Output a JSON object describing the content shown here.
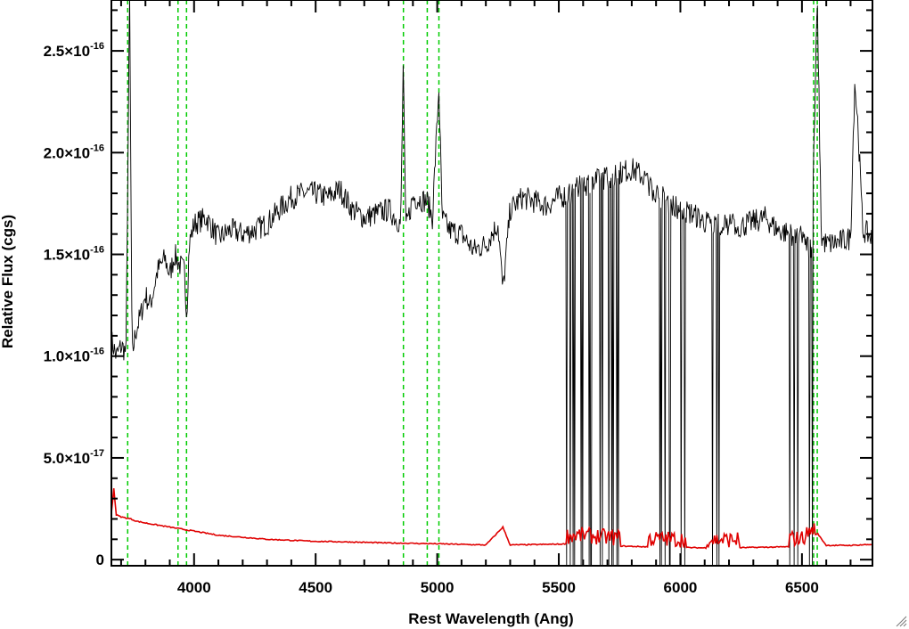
{
  "chart_data": {
    "type": "line",
    "title": "",
    "xlabel": "Rest Wavelength (Ang)",
    "ylabel": "Relative Flux (cgs)",
    "xlim": [
      3660,
      6790
    ],
    "ylim": [
      -3e-18,
      2.75e-16
    ],
    "x_ticks": [
      {
        "value": 4000,
        "label": "4000"
      },
      {
        "value": 4500,
        "label": "4500"
      },
      {
        "value": 5000,
        "label": "5000"
      },
      {
        "value": 5500,
        "label": "5500"
      },
      {
        "value": 6000,
        "label": "6000"
      },
      {
        "value": 6500,
        "label": "6500"
      }
    ],
    "x_minor_step": 100,
    "y_ticks": [
      {
        "value": 0,
        "mantissa": "0",
        "exponent": ""
      },
      {
        "value": 5e-17,
        "mantissa": "5.0×10",
        "exponent": "-17"
      },
      {
        "value": 1e-16,
        "mantissa": "1.0×10",
        "exponent": "-16"
      },
      {
        "value": 1.5e-16,
        "mantissa": "1.5×10",
        "exponent": "-16"
      },
      {
        "value": 2e-16,
        "mantissa": "2.0×10",
        "exponent": "-16"
      },
      {
        "value": 2.5e-16,
        "mantissa": "2.5×10",
        "exponent": "-16"
      }
    ],
    "y_minor_step": 1e-17,
    "grid": false,
    "series": [
      {
        "role": "spectrum",
        "color": "#000000",
        "x": [
          3660,
          3680,
          3700,
          3720,
          3735,
          3745,
          3760,
          3780,
          3800,
          3820,
          3850,
          3880,
          3900,
          3920,
          3940,
          3960,
          3970,
          3980,
          4000,
          4050,
          4100,
          4150,
          4200,
          4250,
          4300,
          4350,
          4400,
          4450,
          4500,
          4550,
          4600,
          4650,
          4700,
          4750,
          4800,
          4850,
          4861,
          4870,
          4900,
          4959,
          4980,
          5007,
          5020,
          5050,
          5100,
          5150,
          5200,
          5250,
          5270,
          5300,
          5350,
          5400,
          5450,
          5500,
          5550,
          5600,
          5650,
          5700,
          5750,
          5800,
          5850,
          5900,
          5950,
          6000,
          6050,
          6100,
          6150,
          6200,
          6250,
          6300,
          6350,
          6400,
          6450,
          6500,
          6540,
          6563,
          6580,
          6600,
          6650,
          6700,
          6717,
          6731,
          6750,
          6790
        ],
        "y": [
          1.08e-16,
          1e-16,
          1.05e-16,
          1.02e-16,
          2.75e-16,
          1e-16,
          1.12e-16,
          1.2e-16,
          1.3e-16,
          1.25e-16,
          1.42e-16,
          1.48e-16,
          1.4e-16,
          1.5e-16,
          1.45e-16,
          1.42e-16,
          1.2e-16,
          1.55e-16,
          1.65e-16,
          1.68e-16,
          1.58e-16,
          1.62e-16,
          1.6e-16,
          1.62e-16,
          1.65e-16,
          1.72e-16,
          1.78e-16,
          1.8e-16,
          1.8e-16,
          1.78e-16,
          1.82e-16,
          1.72e-16,
          1.68e-16,
          1.7e-16,
          1.72e-16,
          1.65e-16,
          2.48e-16,
          1.62e-16,
          1.78e-16,
          1.76e-16,
          1.68e-16,
          2.32e-16,
          1.68e-16,
          1.62e-16,
          1.6e-16,
          1.52e-16,
          1.55e-16,
          1.65e-16,
          1.32e-16,
          1.72e-16,
          1.78e-16,
          1.76e-16,
          1.74e-16,
          1.78e-16,
          1.8e-16,
          1.84e-16,
          1.86e-16,
          1.88e-16,
          1.9e-16,
          1.92e-16,
          1.88e-16,
          1.8e-16,
          1.76e-16,
          1.72e-16,
          1.7e-16,
          1.66e-16,
          1.64e-16,
          1.65e-16,
          1.64e-16,
          1.66e-16,
          1.68e-16,
          1.62e-16,
          1.6e-16,
          1.58e-16,
          1.52e-16,
          2.75e-16,
          1.58e-16,
          1.55e-16,
          1.56e-16,
          1.58e-16,
          2.35e-16,
          2.12e-16,
          1.62e-16,
          1.58e-16
        ]
      },
      {
        "role": "noise",
        "color": "#e00000",
        "x": [
          3660,
          3670,
          3680,
          3700,
          3740,
          3760,
          3800,
          3900,
          4000,
          4100,
          4200,
          4300,
          4400,
          4500,
          4600,
          4700,
          4800,
          4900,
          5000,
          5100,
          5200,
          5270,
          5300,
          5400,
          5500,
          5600,
          5700,
          5800,
          5900,
          6000,
          6100,
          6200,
          6300,
          6400,
          6500,
          6563,
          6600,
          6700,
          6790
        ],
        "y": [
          2.3e-17,
          3.5e-17,
          2.2e-17,
          2.1e-17,
          2e-17,
          1.9e-17,
          1.8e-17,
          1.6e-17,
          1.4e-17,
          1.2e-17,
          1.1e-17,
          1e-17,
          9.5e-18,
          9e-18,
          8.8e-18,
          8.5e-18,
          8.2e-18,
          8e-18,
          7.8e-18,
          7.5e-18,
          7.2e-18,
          1.6e-17,
          7.2e-18,
          7.4e-18,
          7.6e-18,
          8e-18,
          7e-18,
          6.5e-18,
          6.2e-18,
          6e-18,
          5.8e-18,
          5.8e-18,
          6e-18,
          6.2e-18,
          6.5e-18,
          1.3e-17,
          7e-18,
          7e-18,
          7.5e-18
        ]
      }
    ],
    "dropout_bands": [
      [
        5530,
        5750
      ],
      [
        5870,
        6020
      ],
      [
        6110,
        6240
      ],
      [
        6450,
        6550
      ]
    ],
    "reference_lines": {
      "color": "#00cc00",
      "style": "dashed",
      "x": [
        3727,
        3934,
        3969,
        4861,
        4959,
        5007,
        6548,
        6563
      ]
    }
  }
}
